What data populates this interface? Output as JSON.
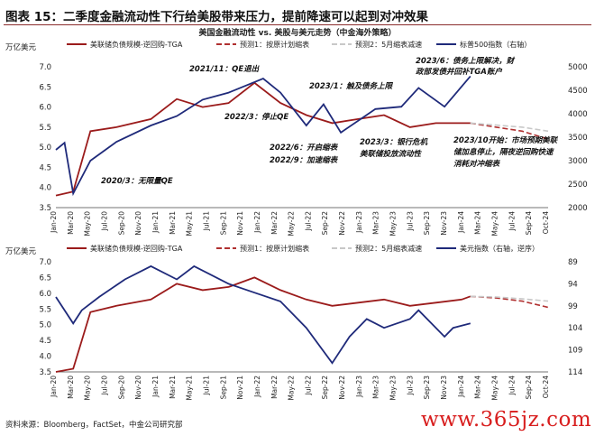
{
  "figure_title": "图表 15：二季度金融流动性下行给美股带来压力，提前降速可以起到对冲效果",
  "source": "资料来源：Bloomberg，FactSet，中金公司研究部",
  "watermark": "www.365jz.com",
  "colors": {
    "liquidity": "#9b1b1b",
    "scenario1": "#b03030",
    "scenario2": "#c8c8c8",
    "spx": "#1f2a7a",
    "dxy": "#1f2a7a"
  },
  "chart_data": [
    {
      "type": "line",
      "title": "美国金融流动性 vs. 美股与美元走势（中金海外策略）",
      "ylabel": "万亿美元",
      "ylim": [
        3.5,
        7.0
      ],
      "y2lim": [
        2000,
        5000
      ],
      "yticks": [
        "3.5",
        "4.0",
        "4.5",
        "5.0",
        "5.5",
        "6.0",
        "6.5",
        "7.0"
      ],
      "y2ticks": [
        "2000",
        "2500",
        "3000",
        "3500",
        "4000",
        "4500",
        "5000"
      ],
      "legend": [
        {
          "label": "美联储负债规模-逆回购-TGA",
          "style": "solid",
          "color": "#9b1b1b"
        },
        {
          "label": "预测1：按原计划缩表",
          "style": "dash",
          "color": "#b03030"
        },
        {
          "label": "预测2：5月缩表减速",
          "style": "dash",
          "color": "#c8c8c8"
        },
        {
          "label": "标普500指数（右轴）",
          "style": "solid",
          "color": "#1f2a7a"
        }
      ],
      "series": [
        {
          "axis": "left",
          "x": [
            "2020-01",
            "2020-03",
            "2020-05",
            "2020-08",
            "2020-12",
            "2021-03",
            "2021-06",
            "2021-09",
            "2021-12",
            "2022-03",
            "2022-06",
            "2022-09",
            "2022-12",
            "2023-03",
            "2023-06",
            "2023-09",
            "2023-12",
            "2024-01"
          ],
          "values": [
            3.8,
            3.9,
            5.4,
            5.5,
            5.7,
            6.2,
            6.0,
            6.1,
            6.6,
            6.1,
            5.8,
            5.6,
            5.7,
            5.8,
            5.5,
            5.6,
            5.6,
            5.6
          ]
        },
        {
          "axis": "left",
          "x": [
            "2024-01",
            "2024-04",
            "2024-07",
            "2024-10"
          ],
          "values": [
            5.6,
            5.5,
            5.4,
            5.2
          ]
        },
        {
          "axis": "left",
          "x": [
            "2024-01",
            "2024-04",
            "2024-07",
            "2024-10"
          ],
          "values": [
            5.6,
            5.55,
            5.5,
            5.4
          ]
        },
        {
          "axis": "right",
          "x": [
            "2020-01",
            "2020-02",
            "2020-03",
            "2020-05",
            "2020-08",
            "2020-12",
            "2021-03",
            "2021-06",
            "2021-09",
            "2022-01",
            "2022-03",
            "2022-06",
            "2022-08",
            "2022-10",
            "2023-02",
            "2023-05",
            "2023-07",
            "2023-10",
            "2024-01"
          ],
          "values": [
            3230,
            3380,
            2300,
            3000,
            3400,
            3750,
            3950,
            4300,
            4450,
            4750,
            4450,
            3750,
            4200,
            3600,
            4100,
            4150,
            4550,
            4150,
            4800
          ]
        }
      ],
      "annotations": [
        "2021/11：QE退出",
        "2022/3：停止QE",
        "2022/6：开启缩表",
        "2022/9：加速缩表",
        "2023/1：触及债务上限",
        "2023/3：银行危机美联储投放流动性",
        "2023/6：债务上限解决，财政部发债并回补TGA账户",
        "2023/10开始：市场预期美联储加息停止，隔夜逆回购快速消耗对冲缩表",
        "2020/3：无限量QE"
      ],
      "xticks": [
        "Jan-20",
        "Mar-20",
        "May-20",
        "Jul-20",
        "Sep-20",
        "Nov-20",
        "Jan-21",
        "Mar-21",
        "May-21",
        "Jul-21",
        "Sep-21",
        "Nov-21",
        "Jan-22",
        "Mar-22",
        "May-22",
        "Jul-22",
        "Sep-22",
        "Nov-22",
        "Jan-23",
        "Mar-23",
        "May-23",
        "Jul-23",
        "Sep-23",
        "Nov-23",
        "Jan-24",
        "Mar-24",
        "May-24",
        "Jul-24",
        "Sep-24",
        "Oct-24"
      ]
    },
    {
      "type": "line",
      "ylabel": "万亿美元",
      "ylim": [
        3.5,
        7.0
      ],
      "y2lim": [
        114,
        89
      ],
      "y2_inverted": true,
      "yticks": [
        "3.5",
        "4.0",
        "4.5",
        "5.0",
        "5.5",
        "6.0",
        "6.5",
        "7.0"
      ],
      "y2ticks": [
        "89",
        "94",
        "99",
        "104",
        "109",
        "114"
      ],
      "legend": [
        {
          "label": "美联储负债规模-逆回购-TGA",
          "style": "solid",
          "color": "#9b1b1b"
        },
        {
          "label": "预测1：按原计划缩表",
          "style": "dash",
          "color": "#b03030"
        },
        {
          "label": "预测2：5月缩表减速",
          "style": "dash",
          "color": "#c8c8c8"
        },
        {
          "label": "美元指数（右轴，逆序）",
          "style": "solid",
          "color": "#1f2a7a"
        }
      ],
      "series": [
        {
          "axis": "left",
          "x": [
            "2020-01",
            "2020-03",
            "2020-05",
            "2020-08",
            "2020-12",
            "2021-03",
            "2021-06",
            "2021-09",
            "2021-12",
            "2022-03",
            "2022-06",
            "2022-09",
            "2022-12",
            "2023-03",
            "2023-06",
            "2023-09",
            "2023-12",
            "2024-01"
          ],
          "values": [
            3.5,
            3.6,
            5.4,
            5.6,
            5.8,
            6.3,
            6.1,
            6.2,
            6.5,
            6.1,
            5.8,
            5.6,
            5.7,
            5.8,
            5.6,
            5.7,
            5.8,
            5.9
          ]
        },
        {
          "axis": "left",
          "x": [
            "2024-01",
            "2024-04",
            "2024-07",
            "2024-10"
          ],
          "values": [
            5.9,
            5.85,
            5.75,
            5.55
          ]
        },
        {
          "axis": "left",
          "x": [
            "2024-01",
            "2024-04",
            "2024-07",
            "2024-10"
          ],
          "values": [
            5.9,
            5.88,
            5.82,
            5.75
          ]
        },
        {
          "axis": "right",
          "x": [
            "2020-01",
            "2020-03",
            "2020-04",
            "2020-06",
            "2020-09",
            "2020-12",
            "2021-03",
            "2021-05",
            "2021-09",
            "2021-12",
            "2022-03",
            "2022-06",
            "2022-09",
            "2022-11",
            "2023-01",
            "2023-03",
            "2023-06",
            "2023-07",
            "2023-10",
            "2023-11",
            "2024-01"
          ],
          "values": [
            97,
            103,
            100,
            97,
            93,
            90,
            93,
            90,
            94,
            96,
            98,
            104,
            112,
            106,
            102,
            104,
            102,
            100,
            106,
            104,
            103
          ]
        }
      ],
      "xticks": [
        "Jan-20",
        "Mar-20",
        "May-20",
        "Jul-20",
        "Sep-20",
        "Nov-20",
        "Jan-21",
        "Mar-21",
        "May-21",
        "Jul-21",
        "Sep-21",
        "Nov-21",
        "Jan-22",
        "Mar-22",
        "May-22",
        "Jul-22",
        "Sep-22",
        "Nov-22",
        "Jan-23",
        "Mar-23",
        "May-23",
        "Jul-23",
        "Sep-23",
        "Nov-23",
        "Jan-24",
        "Mar-24",
        "May-24",
        "Jul-24",
        "Sep-24",
        "Oct-24"
      ]
    }
  ]
}
